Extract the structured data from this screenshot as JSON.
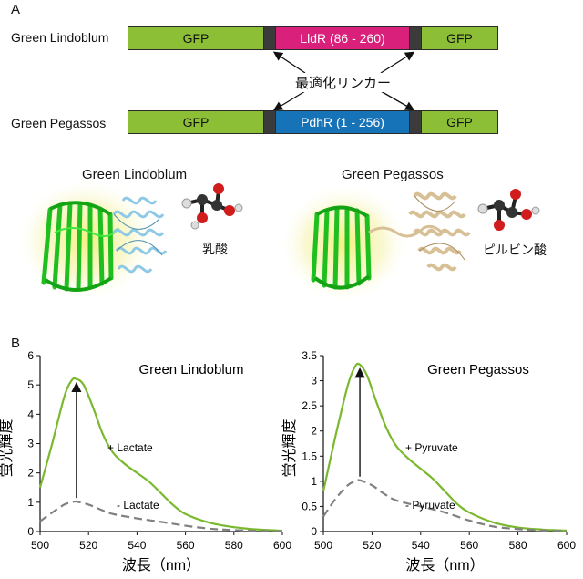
{
  "panel_a": {
    "label": "A",
    "constructs": [
      {
        "name": "Green Lindoblum",
        "segments": [
          "GFP",
          "LldR (86 - 260)",
          "GFP"
        ]
      },
      {
        "name": "Green Pegassos",
        "segments": [
          "GFP",
          "PdhR (1 - 256)",
          "GFP"
        ]
      }
    ],
    "linker_label": "最適化リンカー",
    "structures": [
      {
        "title": "Green Lindoblum",
        "molecule": "乳酸"
      },
      {
        "title": "Green Pegassos",
        "molecule": "ピルビン酸"
      }
    ]
  },
  "panel_b": {
    "label": "B"
  },
  "colors": {
    "gfp": "#8dbf36",
    "linker": "#3b3b3b",
    "lldr": "#d9207b",
    "pdhr": "#1773b8",
    "bound_curve": "#7ab82e",
    "unbound_curve": "#808080",
    "lindoblum_sensor": "#8ec9e6",
    "pegassos_sensor": "#d8c096",
    "gfp_barrel": "#22cc22"
  },
  "chart_data": [
    {
      "type": "line",
      "title": "Green Lindoblum",
      "xlabel": "波長（nm）",
      "ylabel": "蛍光輝度",
      "xlim": [
        500,
        600
      ],
      "ylim": [
        0,
        6
      ],
      "xticks": [
        "500",
        "520",
        "540",
        "560",
        "580",
        "600"
      ],
      "yticks": [
        "0",
        "1",
        "2",
        "3",
        "4",
        "5",
        "6"
      ],
      "series": [
        {
          "name": "+ Lactate",
          "style": "solid",
          "x": [
            500,
            505,
            510,
            513,
            515,
            518,
            522,
            526,
            530,
            535,
            540,
            545,
            550,
            555,
            560,
            570,
            580,
            590,
            600
          ],
          "y": [
            1.5,
            3.0,
            4.6,
            5.15,
            5.2,
            5.0,
            4.2,
            3.3,
            2.7,
            2.3,
            2.0,
            1.7,
            1.3,
            0.9,
            0.6,
            0.3,
            0.15,
            0.07,
            0.03
          ]
        },
        {
          "name": "- Lactate",
          "style": "dashed",
          "x": [
            500,
            505,
            510,
            513,
            515,
            520,
            525,
            530,
            540,
            550,
            560,
            570,
            580,
            590,
            600
          ],
          "y": [
            0.35,
            0.65,
            0.92,
            1.0,
            1.02,
            0.92,
            0.75,
            0.6,
            0.45,
            0.33,
            0.2,
            0.1,
            0.05,
            0.02,
            0.01
          ]
        }
      ],
      "annotation": "arrow from unbound peak to bound peak at 515 nm"
    },
    {
      "type": "line",
      "title": "Green Pegassos",
      "xlabel": "波長（nm）",
      "ylabel": "蛍光輝度",
      "xlim": [
        500,
        600
      ],
      "ylim": [
        0,
        3.5
      ],
      "xticks": [
        "500",
        "520",
        "540",
        "560",
        "580",
        "600"
      ],
      "yticks": [
        "0",
        "0.5",
        "1",
        "1.5",
        "2",
        "2.5",
        "3",
        "3.5"
      ],
      "series": [
        {
          "name": "+ Pyruvate",
          "style": "solid",
          "x": [
            500,
            505,
            510,
            513,
            515,
            518,
            522,
            526,
            530,
            535,
            540,
            545,
            550,
            555,
            560,
            570,
            580,
            590,
            600
          ],
          "y": [
            0.8,
            1.9,
            2.9,
            3.28,
            3.32,
            3.1,
            2.55,
            2.05,
            1.7,
            1.45,
            1.25,
            1.05,
            0.8,
            0.55,
            0.38,
            0.18,
            0.08,
            0.04,
            0.02
          ]
        },
        {
          "name": "- Pyruvate",
          "style": "dashed",
          "x": [
            500,
            505,
            510,
            513,
            515,
            520,
            525,
            530,
            540,
            550,
            560,
            570,
            580,
            590,
            600
          ],
          "y": [
            0.3,
            0.65,
            0.92,
            1.0,
            1.02,
            0.92,
            0.75,
            0.62,
            0.5,
            0.38,
            0.22,
            0.1,
            0.05,
            0.02,
            0.01
          ]
        }
      ],
      "annotation": "arrow from unbound peak to bound peak at 515 nm"
    }
  ]
}
